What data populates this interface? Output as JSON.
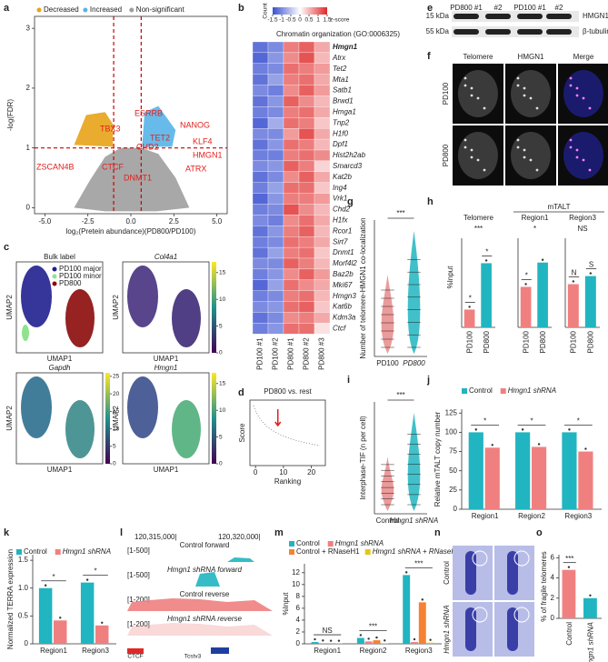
{
  "panels": {
    "a": {
      "letter": "a",
      "legend": [
        {
          "name": "Decreased",
          "color": "#e8a317"
        },
        {
          "name": "Increased",
          "color": "#56b4e9"
        },
        {
          "name": "Non-significant",
          "color": "#9e9e9e"
        }
      ],
      "xlabel": "log₂(Pretein abundance)(PD800/PD100)",
      "ylabel": "-log(FDR)",
      "xlim": [
        -5.6,
        5.6
      ],
      "xticks": [
        {
          "value": -5,
          "label": "-5.0"
        },
        {
          "value": -2.5,
          "label": "-2.5"
        },
        {
          "value": 0,
          "label": "0.0"
        },
        {
          "value": 2.5,
          "label": "2.5"
        },
        {
          "value": 5,
          "label": "5.0"
        }
      ],
      "ylim": [
        -0.1,
        3.2
      ],
      "yticks": [
        0,
        1,
        2,
        3
      ],
      "thresholds_x": [
        -1,
        0.6
      ],
      "threshold_y": 1,
      "genes": [
        "ESRRB",
        "TBX3",
        "NANOG",
        "TET2",
        "CHD2",
        "KLF4",
        "ZSCAN4B",
        "HMGN1",
        "CTCF",
        "ATRX",
        "DNMT1"
      ]
    },
    "b": {
      "letter": "b",
      "count_label": "Count",
      "z_label": "z-score",
      "zlim": [
        -1.5,
        1.5
      ],
      "zticks": [
        -1.5,
        -1,
        -0.5,
        0,
        0.5,
        1,
        1.5
      ],
      "title": "Chromatin organization (GO:0006325)",
      "genes": [
        "Hmgn1",
        "Atrx",
        "Tet2",
        "Mta1",
        "Satb1",
        "Brwd1",
        "Hmga1",
        "Tnp2",
        "H1f0",
        "Dpf1",
        "Hist2h2ab",
        "Smarcd3",
        "Kat2b",
        "Ing4",
        "Vrk1",
        "Chd2",
        "H1fx",
        "Rcor1",
        "Sirt7",
        "Dnmt1",
        "Morf4l2",
        "Baz2b",
        "Mki67",
        "Hmgn3",
        "Kat6b",
        "Kdm3a",
        "Ctcf"
      ],
      "samples": [
        "PD100 #1",
        "PD100 #2",
        "PD800 #1",
        "PD800 #2",
        "PD800 #3"
      ],
      "z": [
        [
          -1.2,
          -1.0,
          0.9,
          1.1,
          0.6
        ],
        [
          -1.3,
          -0.9,
          0.8,
          1.2,
          0.5
        ],
        [
          -1.1,
          -1.0,
          1.0,
          0.9,
          0.7
        ],
        [
          -1.2,
          -0.8,
          0.9,
          1.0,
          0.6
        ],
        [
          -1.0,
          -1.1,
          0.8,
          1.1,
          0.7
        ],
        [
          -1.2,
          -0.9,
          1.1,
          0.8,
          0.5
        ],
        [
          -1.1,
          -1.0,
          0.9,
          1.0,
          0.6
        ],
        [
          -1.3,
          -0.7,
          1.0,
          0.9,
          0.4
        ],
        [
          -1.0,
          -1.0,
          0.7,
          1.2,
          0.6
        ],
        [
          -1.2,
          -0.9,
          1.0,
          0.9,
          0.5
        ],
        [
          -1.1,
          -1.1,
          0.9,
          1.0,
          0.8
        ],
        [
          -1.0,
          -0.9,
          1.1,
          0.9,
          0.3
        ],
        [
          -1.2,
          -1.0,
          0.8,
          1.1,
          0.6
        ],
        [
          -1.1,
          -0.8,
          1.0,
          1.0,
          0.4
        ],
        [
          -1.3,
          -0.9,
          0.9,
          0.9,
          0.7
        ],
        [
          -1.1,
          -1.0,
          1.2,
          0.8,
          0.5
        ],
        [
          -1.0,
          -1.1,
          0.8,
          1.0,
          0.6
        ],
        [
          -1.2,
          -0.9,
          0.9,
          1.1,
          0.5
        ],
        [
          -1.1,
          -1.0,
          1.0,
          0.9,
          0.6
        ],
        [
          -1.2,
          -0.8,
          0.9,
          1.0,
          0.4
        ],
        [
          -1.0,
          -1.0,
          1.1,
          0.9,
          0.5
        ],
        [
          -1.1,
          -0.9,
          0.8,
          1.1,
          0.7
        ],
        [
          -1.3,
          -0.8,
          1.0,
          0.8,
          0.6
        ],
        [
          -1.1,
          -1.0,
          0.9,
          1.0,
          0.5
        ],
        [
          -1.0,
          -0.9,
          1.0,
          1.1,
          0.4
        ],
        [
          -1.2,
          -1.0,
          0.8,
          0.9,
          0.6
        ],
        [
          -1.1,
          -0.9,
          1.0,
          1.0,
          0.2
        ]
      ]
    },
    "c": {
      "letter": "c",
      "xlabel": "UMAP1",
      "ylabel": "UMAP2",
      "maps": [
        {
          "title": "Bulk label",
          "legend": [
            {
              "name": "PD100 major",
              "color": "#1f1f8f"
            },
            {
              "name": "PD100 minor",
              "color": "#8fe38f"
            },
            {
              "name": "PD800",
              "color": "#8b0a0a"
            }
          ]
        },
        {
          "title": "Col4a1",
          "cbar_lim": [
            0,
            17
          ],
          "cbar_ticks": [
            0,
            5,
            10,
            15
          ]
        },
        {
          "title": "Gapdh",
          "cbar_lim": [
            0,
            26
          ],
          "cbar_ticks": [
            0,
            5,
            10,
            15,
            20,
            25
          ]
        },
        {
          "title": "Hmgn1",
          "cbar_lim": [
            0,
            17
          ],
          "cbar_ticks": [
            0,
            5,
            10,
            15
          ]
        }
      ]
    },
    "d": {
      "letter": "d",
      "title": "PD800 vs. rest",
      "xlabel": "Ranking",
      "ylabel": "Score",
      "xlim": [
        -2,
        25
      ],
      "xticks": [
        0,
        10,
        20
      ]
    },
    "e": {
      "letter": "e",
      "lanes": [
        "PD800 #1",
        "#2",
        "PD100 #1",
        "#2"
      ],
      "markers": [
        "15 kDa",
        "55 kDa"
      ],
      "bands": [
        "HMGN1",
        "β-tubulin"
      ]
    },
    "f": {
      "letter": "f",
      "columns": [
        "Telomere",
        "HMGN1",
        "Merge"
      ],
      "rows": [
        "PD100",
        "PD800"
      ]
    },
    "g": {
      "letter": "g",
      "ylabel": "Number of telomere-HMGN1 co-localization",
      "categories": [
        "PD100",
        "PD800"
      ],
      "sig": "***"
    },
    "h": {
      "letter": "h",
      "group_label": "mTALT",
      "ylabel": "%Input",
      "charts": [
        {
          "title": "Telomere",
          "categories": [
            "PD100",
            "PD800"
          ],
          "colors": [
            "#f08080",
            "#20b5c0"
          ],
          "values": [
            0.2,
            0.72
          ],
          "ylim": [
            0,
            1
          ],
          "sig": "***"
        },
        {
          "title": "Region1",
          "categories": [
            "PD100",
            "PD800"
          ],
          "colors": [
            "#f08080",
            "#20b5c0"
          ],
          "values": [
            1.5,
            2.4
          ],
          "ylim": [
            0,
            3.3
          ],
          "sig": "*"
        },
        {
          "title": "Region3",
          "categories": [
            "PD100",
            "PD800"
          ],
          "colors": [
            "#f08080",
            "#20b5c0"
          ],
          "values": [
            1.6,
            1.9
          ],
          "ylim": [
            0,
            3.3
          ],
          "sig": "NS"
        }
      ]
    },
    "i": {
      "letter": "i",
      "ylabel": "Interphase-TIF (n per cell)",
      "categories": [
        "Control",
        "Hmgn1 shRNA"
      ],
      "sig": "***"
    },
    "j": {
      "letter": "j",
      "ylabel": "Relative mTALT copy number",
      "categories": [
        "Region1",
        "Region2",
        "Region3"
      ],
      "series": [
        {
          "name": "Control",
          "color": "#20b5c0",
          "values": [
            100,
            100,
            100
          ]
        },
        {
          "name": "Hmgn1 shRNA",
          "color": "#f08080",
          "values": [
            80,
            81,
            75
          ]
        }
      ],
      "ylim": [
        0,
        130
      ],
      "yticks": [
        0,
        25,
        50,
        75,
        100,
        125
      ],
      "sig": [
        "*",
        "*",
        "*"
      ]
    },
    "k": {
      "letter": "k",
      "ylabel": "Normalized TERRA expression",
      "categories": [
        "Region1",
        "Region3"
      ],
      "series": [
        {
          "name": "Control",
          "color": "#20b5c0",
          "values": [
            1.0,
            1.1
          ]
        },
        {
          "name": "Hmgn1 shRNA",
          "color": "#f08080",
          "values": [
            0.42,
            0.33
          ]
        }
      ],
      "ylim": [
        0,
        1.6
      ],
      "yticks": [
        0,
        0.5,
        {
          "value": 1,
          "label": "1.0"
        },
        1.5
      ],
      "sig": [
        "*",
        "*"
      ]
    },
    "l": {
      "letter": "l",
      "coords": [
        "120,315,000|",
        "120,320,000|"
      ],
      "tracks": [
        {
          "range": "[1-500]",
          "name": "Control forward"
        },
        {
          "range": "[1-500]",
          "name": "Hmgn1 shRNA forward"
        },
        {
          "range": "[1-200]",
          "name": "Control reverse"
        },
        {
          "range": "[1-200]",
          "name": "Hmgn1 shRNA reverse"
        }
      ],
      "features": [
        "CTCF",
        "Tcstv3"
      ]
    },
    "m": {
      "letter": "m",
      "ylabel": "%Input",
      "categories": [
        "Region1",
        "Region2",
        "Region3"
      ],
      "series": [
        {
          "name": "Control",
          "color": "#20b5c0",
          "values": [
            0.3,
            1.0,
            11.6
          ]
        },
        {
          "name": "Hmgn1 shRNA",
          "color": "#f08080",
          "values": [
            0.1,
            0.4,
            0.3
          ]
        },
        {
          "name": "Control + RNaseH1",
          "color": "#f58231",
          "values": [
            0.05,
            0.6,
            7.0
          ]
        },
        {
          "name": "Hmgn1 shRNA + RNaseH1",
          "color": "#e6c619",
          "values": [
            0.05,
            0.1,
            0.2
          ]
        }
      ],
      "ylim": [
        0,
        13.5
      ],
      "yticks": [
        0,
        2,
        4,
        6,
        8,
        10,
        12
      ],
      "sig": [
        "NS",
        "***",
        "***"
      ]
    },
    "n": {
      "letter": "n",
      "rows": [
        "Control",
        "Hmgn1 shRNA"
      ]
    },
    "o": {
      "letter": "o",
      "ylabel": "% of fragile telomeres",
      "categories": [
        "Control",
        "Hmgn1 shRNA"
      ],
      "colors": [
        "#f08080",
        "#20b5c0"
      ],
      "values": [
        4.8,
        2.0
      ],
      "ylim": [
        0,
        6.3
      ],
      "yticks": [
        0,
        2,
        4,
        6
      ],
      "sig": [
        "***"
      ]
    }
  }
}
